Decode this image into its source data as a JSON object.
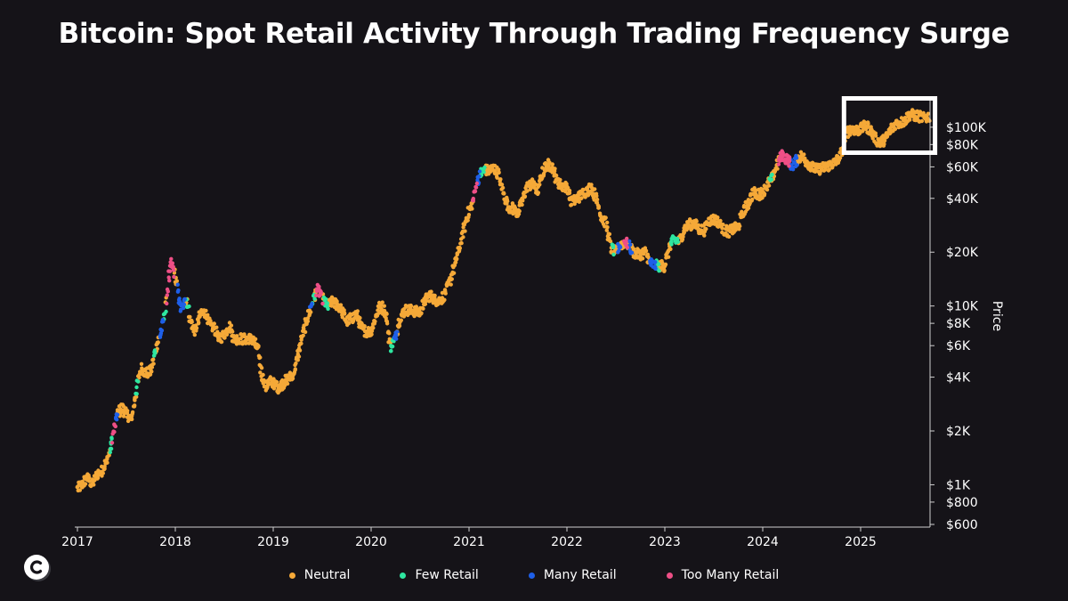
{
  "chart_data": {
    "type": "scatter",
    "title": "Bitcoin: Spot Retail Activity Through Trading Frequency Surge",
    "ylabel": "Price",
    "y_scale": "log",
    "ylim": [
      600,
      130000
    ],
    "xlim": [
      2017.0,
      2025.75
    ],
    "x_ticks": [
      "2017",
      "2018",
      "2019",
      "2020",
      "2021",
      "2022",
      "2023",
      "2024",
      "2025"
    ],
    "y_ticks": [
      {
        "value": 100000,
        "label": "$100K"
      },
      {
        "value": 80000,
        "label": "$80K"
      },
      {
        "value": 60000,
        "label": "$60K"
      },
      {
        "value": 40000,
        "label": "$40K"
      },
      {
        "value": 20000,
        "label": "$20K"
      },
      {
        "value": 10000,
        "label": "$10K"
      },
      {
        "value": 8000,
        "label": "$8K"
      },
      {
        "value": 6000,
        "label": "$6K"
      },
      {
        "value": 4000,
        "label": "$4K"
      },
      {
        "value": 2000,
        "label": "$2K"
      },
      {
        "value": 1000,
        "label": "$1K"
      },
      {
        "value": 800,
        "label": "$800"
      },
      {
        "value": 600,
        "label": "$600"
      }
    ],
    "categories": [
      {
        "key": "neutral",
        "name": "Neutral",
        "color": "#f5a938"
      },
      {
        "key": "few",
        "name": "Few Retail",
        "color": "#2ee6a0"
      },
      {
        "key": "many",
        "name": "Many Retail",
        "color": "#1e5fe8"
      },
      {
        "key": "too_many",
        "name": "Too Many Retail",
        "color": "#ee4f86"
      }
    ],
    "price_path": [
      [
        2017.0,
        950
      ],
      [
        2017.05,
        1000
      ],
      [
        2017.1,
        1100
      ],
      [
        2017.15,
        1000
      ],
      [
        2017.2,
        1150
      ],
      [
        2017.25,
        1200
      ],
      [
        2017.3,
        1350
      ],
      [
        2017.35,
        1700
      ],
      [
        2017.4,
        2400
      ],
      [
        2017.45,
        2700
      ],
      [
        2017.5,
        2500
      ],
      [
        2017.55,
        2300
      ],
      [
        2017.6,
        3300
      ],
      [
        2017.65,
        4500
      ],
      [
        2017.7,
        4200
      ],
      [
        2017.75,
        4300
      ],
      [
        2017.8,
        5700
      ],
      [
        2017.85,
        7000
      ],
      [
        2017.9,
        9500
      ],
      [
        2017.93,
        14000
      ],
      [
        2017.96,
        17500
      ],
      [
        2018.0,
        14500
      ],
      [
        2018.03,
        11500
      ],
      [
        2018.06,
        9500
      ],
      [
        2018.09,
        10500
      ],
      [
        2018.12,
        11000
      ],
      [
        2018.15,
        8500
      ],
      [
        2018.2,
        7200
      ],
      [
        2018.25,
        8800
      ],
      [
        2018.3,
        9300
      ],
      [
        2018.35,
        7800
      ],
      [
        2018.4,
        7500
      ],
      [
        2018.45,
        6500
      ],
      [
        2018.5,
        6900
      ],
      [
        2018.55,
        7800
      ],
      [
        2018.6,
        6500
      ],
      [
        2018.65,
        6600
      ],
      [
        2018.7,
        6500
      ],
      [
        2018.75,
        6600
      ],
      [
        2018.8,
        6400
      ],
      [
        2018.85,
        5500
      ],
      [
        2018.88,
        4200
      ],
      [
        2018.92,
        3500
      ],
      [
        2018.96,
        3800
      ],
      [
        2019.0,
        3700
      ],
      [
        2019.05,
        3500
      ],
      [
        2019.1,
        3700
      ],
      [
        2019.15,
        3900
      ],
      [
        2019.2,
        4100
      ],
      [
        2019.25,
        5200
      ],
      [
        2019.3,
        7000
      ],
      [
        2019.35,
        8500
      ],
      [
        2019.4,
        10500
      ],
      [
        2019.45,
        12500
      ],
      [
        2019.5,
        11000
      ],
      [
        2019.55,
        10000
      ],
      [
        2019.6,
        10500
      ],
      [
        2019.65,
        10200
      ],
      [
        2019.7,
        9500
      ],
      [
        2019.75,
        8200
      ],
      [
        2019.8,
        8500
      ],
      [
        2019.85,
        9000
      ],
      [
        2019.9,
        7500
      ],
      [
        2019.95,
        7200
      ],
      [
        2020.0,
        7200
      ],
      [
        2020.05,
        8800
      ],
      [
        2020.1,
        10200
      ],
      [
        2020.15,
        9000
      ],
      [
        2020.2,
        5800
      ],
      [
        2020.25,
        6800
      ],
      [
        2020.3,
        8800
      ],
      [
        2020.35,
        9500
      ],
      [
        2020.4,
        9500
      ],
      [
        2020.45,
        9300
      ],
      [
        2020.5,
        9200
      ],
      [
        2020.55,
        10800
      ],
      [
        2020.6,
        11500
      ],
      [
        2020.65,
        10800
      ],
      [
        2020.7,
        10700
      ],
      [
        2020.75,
        11500
      ],
      [
        2020.8,
        13500
      ],
      [
        2020.85,
        16500
      ],
      [
        2020.88,
        19000
      ],
      [
        2020.92,
        23000
      ],
      [
        2020.96,
        29000
      ],
      [
        2021.0,
        34000
      ],
      [
        2021.04,
        38000
      ],
      [
        2021.08,
        50000
      ],
      [
        2021.12,
        55000
      ],
      [
        2021.16,
        58000
      ],
      [
        2021.2,
        57000
      ],
      [
        2021.25,
        59000
      ],
      [
        2021.3,
        55000
      ],
      [
        2021.35,
        43000
      ],
      [
        2021.4,
        36000
      ],
      [
        2021.45,
        35000
      ],
      [
        2021.5,
        33000
      ],
      [
        2021.55,
        40000
      ],
      [
        2021.6,
        47000
      ],
      [
        2021.65,
        48000
      ],
      [
        2021.7,
        44000
      ],
      [
        2021.75,
        55000
      ],
      [
        2021.8,
        62000
      ],
      [
        2021.85,
        60000
      ],
      [
        2021.9,
        50000
      ],
      [
        2021.95,
        47000
      ],
      [
        2022.0,
        46000
      ],
      [
        2022.05,
        38000
      ],
      [
        2022.1,
        40000
      ],
      [
        2022.15,
        42000
      ],
      [
        2022.2,
        44000
      ],
      [
        2022.25,
        46000
      ],
      [
        2022.3,
        40000
      ],
      [
        2022.35,
        32000
      ],
      [
        2022.4,
        29000
      ],
      [
        2022.45,
        21000
      ],
      [
        2022.5,
        20000
      ],
      [
        2022.55,
        22000
      ],
      [
        2022.6,
        23000
      ],
      [
        2022.65,
        21000
      ],
      [
        2022.7,
        19500
      ],
      [
        2022.75,
        19500
      ],
      [
        2022.8,
        20000
      ],
      [
        2022.85,
        17500
      ],
      [
        2022.9,
        16800
      ],
      [
        2022.95,
        16800
      ],
      [
        2023.0,
        16700
      ],
      [
        2023.05,
        22000
      ],
      [
        2023.1,
        23500
      ],
      [
        2023.15,
        23000
      ],
      [
        2023.2,
        27000
      ],
      [
        2023.25,
        28500
      ],
      [
        2023.3,
        29000
      ],
      [
        2023.35,
        27000
      ],
      [
        2023.4,
        26500
      ],
      [
        2023.45,
        30000
      ],
      [
        2023.5,
        30500
      ],
      [
        2023.55,
        29500
      ],
      [
        2023.6,
        26500
      ],
      [
        2023.65,
        26000
      ],
      [
        2023.7,
        27000
      ],
      [
        2023.75,
        27500
      ],
      [
        2023.8,
        34000
      ],
      [
        2023.85,
        37000
      ],
      [
        2023.9,
        43000
      ],
      [
        2023.95,
        42000
      ],
      [
        2024.0,
        43000
      ],
      [
        2024.05,
        48000
      ],
      [
        2024.1,
        52000
      ],
      [
        2024.15,
        63000
      ],
      [
        2024.2,
        70000
      ],
      [
        2024.25,
        66000
      ],
      [
        2024.3,
        61000
      ],
      [
        2024.35,
        66000
      ],
      [
        2024.4,
        69000
      ],
      [
        2024.45,
        64000
      ],
      [
        2024.5,
        60000
      ],
      [
        2024.55,
        58000
      ],
      [
        2024.6,
        59000
      ],
      [
        2024.65,
        60000
      ],
      [
        2024.7,
        62000
      ],
      [
        2024.75,
        64000
      ],
      [
        2024.8,
        70000
      ],
      [
        2024.85,
        92000
      ],
      [
        2024.9,
        98000
      ],
      [
        2024.95,
        96000
      ],
      [
        2025.0,
        97000
      ],
      [
        2025.05,
        102000
      ],
      [
        2025.1,
        97000
      ],
      [
        2025.15,
        86000
      ],
      [
        2025.2,
        82000
      ],
      [
        2025.25,
        85000
      ],
      [
        2025.3,
        95000
      ],
      [
        2025.35,
        104000
      ],
      [
        2025.4,
        106000
      ],
      [
        2025.45,
        108000
      ],
      [
        2025.5,
        118000
      ],
      [
        2025.55,
        116000
      ],
      [
        2025.6,
        115000
      ],
      [
        2025.65,
        112000
      ],
      [
        2025.7,
        115000
      ]
    ],
    "activity_segments": [
      {
        "start": 2017.33,
        "end": 2017.36,
        "category": "few"
      },
      {
        "start": 2017.36,
        "end": 2017.39,
        "category": "too_many"
      },
      {
        "start": 2017.39,
        "end": 2017.41,
        "category": "many"
      },
      {
        "start": 2017.6,
        "end": 2017.62,
        "category": "few"
      },
      {
        "start": 2017.78,
        "end": 2017.8,
        "category": "few"
      },
      {
        "start": 2017.84,
        "end": 2017.88,
        "category": "many"
      },
      {
        "start": 2017.88,
        "end": 2017.9,
        "category": "few"
      },
      {
        "start": 2017.91,
        "end": 2017.99,
        "category": "too_many"
      },
      {
        "start": 2018.02,
        "end": 2018.1,
        "category": "many"
      },
      {
        "start": 2018.12,
        "end": 2018.14,
        "category": "few"
      },
      {
        "start": 2019.38,
        "end": 2019.4,
        "category": "many"
      },
      {
        "start": 2019.4,
        "end": 2019.42,
        "category": "few"
      },
      {
        "start": 2019.44,
        "end": 2019.5,
        "category": "too_many"
      },
      {
        "start": 2019.52,
        "end": 2019.56,
        "category": "few"
      },
      {
        "start": 2020.2,
        "end": 2020.23,
        "category": "few"
      },
      {
        "start": 2020.23,
        "end": 2020.26,
        "category": "many"
      },
      {
        "start": 2021.04,
        "end": 2021.08,
        "category": "too_many"
      },
      {
        "start": 2021.08,
        "end": 2021.11,
        "category": "many"
      },
      {
        "start": 2021.11,
        "end": 2021.16,
        "category": "few"
      },
      {
        "start": 2022.46,
        "end": 2022.48,
        "category": "few"
      },
      {
        "start": 2022.52,
        "end": 2022.55,
        "category": "many"
      },
      {
        "start": 2022.58,
        "end": 2022.62,
        "category": "too_many"
      },
      {
        "start": 2022.63,
        "end": 2022.66,
        "category": "many"
      },
      {
        "start": 2022.85,
        "end": 2022.91,
        "category": "many"
      },
      {
        "start": 2022.91,
        "end": 2022.94,
        "category": "few"
      },
      {
        "start": 2023.06,
        "end": 2023.14,
        "category": "few"
      },
      {
        "start": 2024.07,
        "end": 2024.09,
        "category": "few"
      },
      {
        "start": 2024.16,
        "end": 2024.28,
        "category": "too_many"
      },
      {
        "start": 2024.28,
        "end": 2024.35,
        "category": "many"
      }
    ],
    "highlight_box": {
      "x0": 2024.83,
      "x1": 2025.76,
      "y0": 72000,
      "y1": 145000
    }
  }
}
